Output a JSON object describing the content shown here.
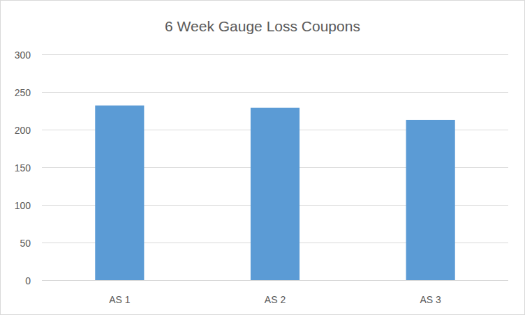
{
  "chart_data": {
    "type": "bar",
    "title": "6 Week Gauge Loss Coupons",
    "categories": [
      "AS 1",
      "AS 2",
      "AS 3"
    ],
    "values": [
      232,
      229,
      213
    ],
    "color": "#5b9bd5",
    "ylim": [
      0,
      300
    ],
    "yticks": [
      0,
      50,
      100,
      150,
      200,
      250,
      300
    ],
    "grid": true
  }
}
